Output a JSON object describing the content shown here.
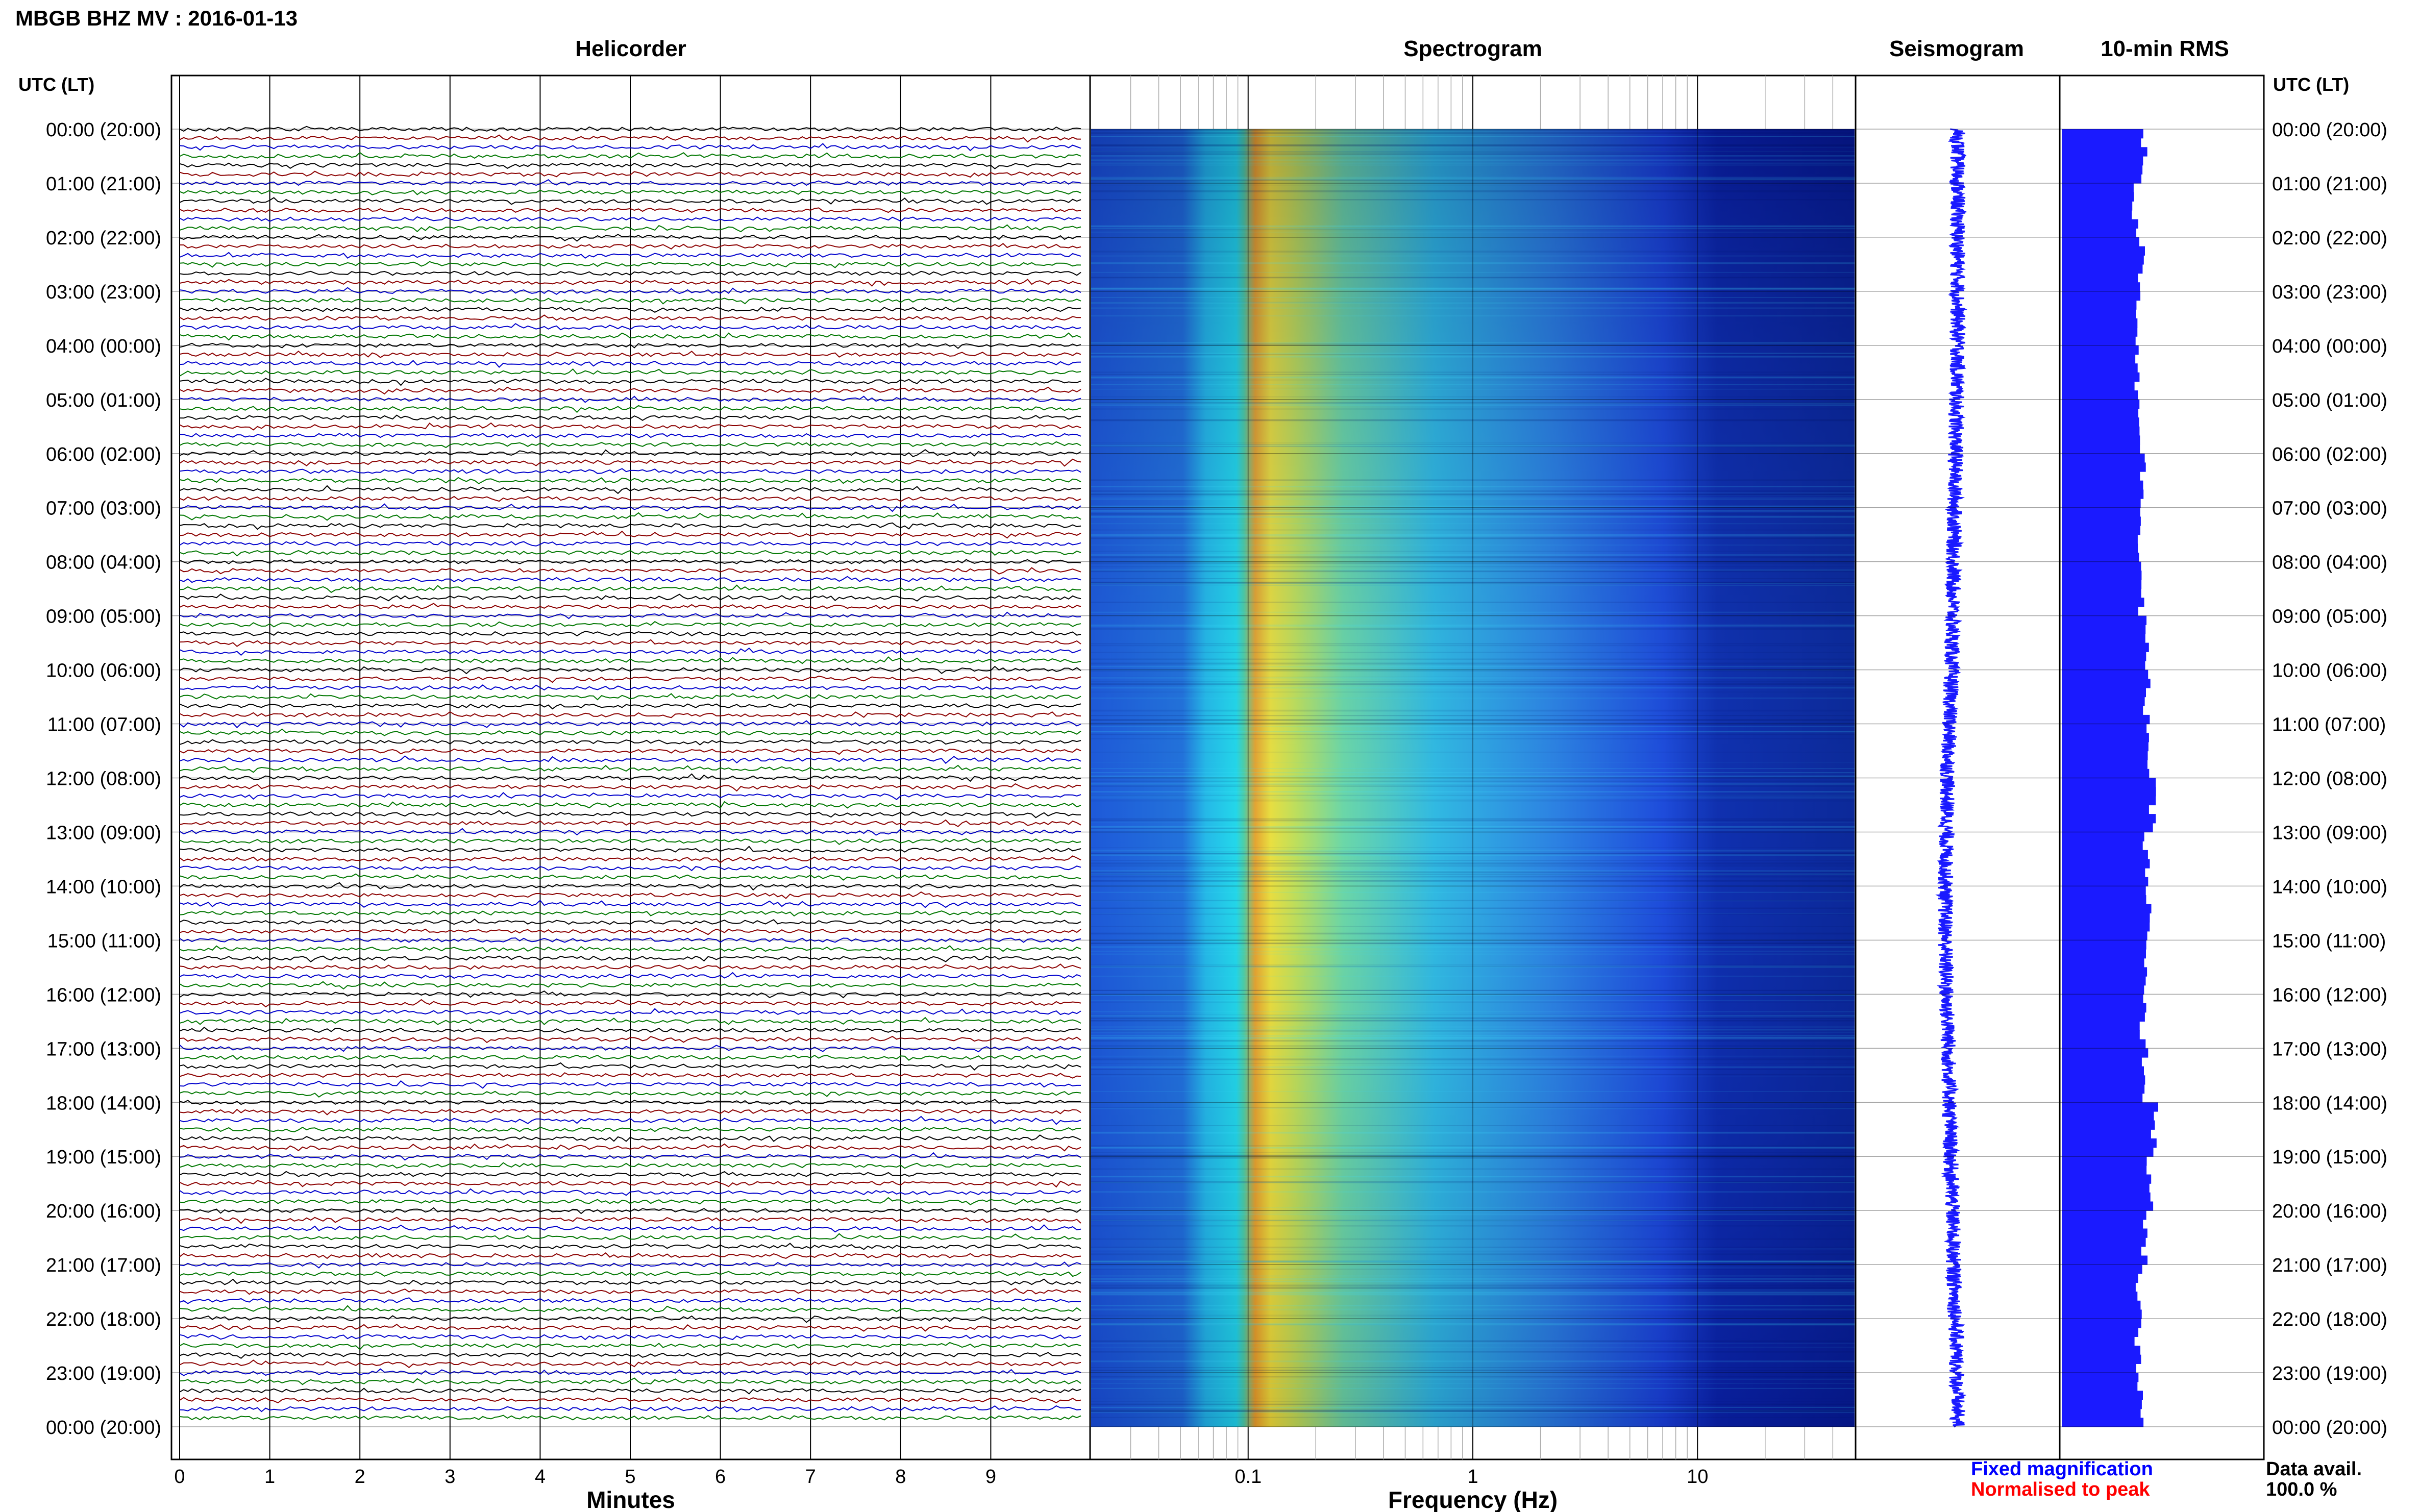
{
  "header": {
    "title": "MBGB BHZ MV : 2016-01-13",
    "tz_label_left": "UTC (LT)",
    "tz_label_right": "UTC (LT)"
  },
  "panels": {
    "helicorder": "Helicorder",
    "spectrogram": "Spectrogram",
    "seismogram": "Seismogram",
    "rms": "10-min RMS"
  },
  "footer": {
    "xlabel_helicorder": "Minutes",
    "xlabel_spectrogram": "Frequency (Hz)",
    "legend_fixed": "Fixed magnification",
    "legend_normalised": "Normalised to peak",
    "data_avail_label": "Data avail.",
    "data_avail_value": "100.0 %"
  },
  "colors": {
    "trace_cycle": [
      "#000000",
      "#8b0000",
      "#0000cc",
      "#007700"
    ],
    "fixed_legend": "#0000ff",
    "normalised_legend": "#ff0000",
    "seismogram": "#1a1aff",
    "rms_bar": "#1a1aff",
    "spectrogram_low": "#00008b",
    "spectrogram_high": "#ffd700"
  },
  "chart_data": [
    {
      "type": "line",
      "panel": "helicorder",
      "y_ticks": [
        "00:00 (20:00)",
        "01:00 (21:00)",
        "02:00 (22:00)",
        "03:00 (23:00)",
        "04:00 (00:00)",
        "05:00 (01:00)",
        "06:00 (02:00)",
        "07:00 (03:00)",
        "08:00 (04:00)",
        "09:00 (05:00)",
        "10:00 (06:00)",
        "11:00 (07:00)",
        "12:00 (08:00)",
        "13:00 (09:00)",
        "14:00 (10:00)",
        "15:00 (11:00)",
        "16:00 (12:00)",
        "17:00 (13:00)",
        "18:00 (14:00)",
        "19:00 (15:00)",
        "20:00 (16:00)",
        "21:00 (17:00)",
        "22:00 (18:00)",
        "23:00 (19:00)",
        "00:00 (20:00)"
      ],
      "x_ticks": [
        "0",
        "1",
        "2",
        "3",
        "4",
        "5",
        "6",
        "7",
        "8",
        "9"
      ],
      "xlim": [
        0,
        10
      ],
      "xlabel": "Minutes",
      "rows": 144,
      "grid": true
    },
    {
      "type": "heatmap",
      "panel": "spectrogram",
      "x_scale": "log",
      "xlim": [
        0.02,
        50
      ],
      "x_ticks": [
        "0.1",
        "1",
        "10"
      ],
      "xlabel": "Frequency (Hz)",
      "peak_band_hz": [
        0.12,
        0.25
      ],
      "grid": true
    },
    {
      "type": "line",
      "panel": "seismogram",
      "relative_offset_by_hour": [
        0.0,
        0.0,
        0.0,
        0.0,
        0.0,
        0.05,
        0.1,
        0.15,
        0.2,
        0.25,
        0.3,
        0.4,
        0.5,
        0.55,
        0.6,
        0.6,
        0.55,
        0.45,
        0.4,
        0.35,
        0.25,
        0.2,
        0.1,
        0.05,
        0.0
      ]
    },
    {
      "type": "bar",
      "panel": "rms",
      "orientation": "horizontal",
      "bins": 144,
      "relative_values_hourly": [
        0.62,
        0.55,
        0.6,
        0.58,
        0.57,
        0.6,
        0.61,
        0.6,
        0.6,
        0.63,
        0.64,
        0.66,
        0.68,
        0.64,
        0.65,
        0.62,
        0.61,
        0.63,
        0.7,
        0.66,
        0.62,
        0.58,
        0.57,
        0.6
      ]
    }
  ]
}
